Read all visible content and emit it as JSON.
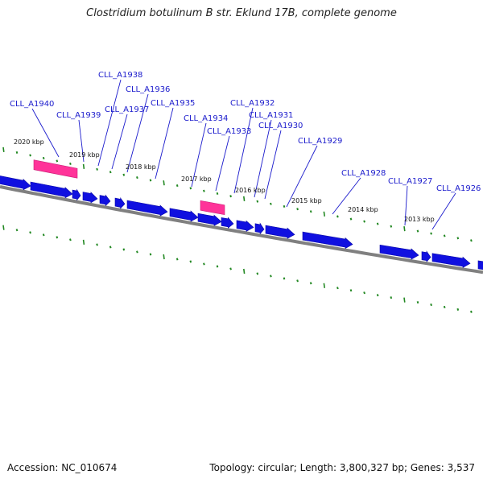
{
  "title": "Clostridium botulinum B str. Eklund 17B, complete genome",
  "footer": {
    "accession": "Accession: NC_010674",
    "summary": "Topology: circular; Length: 3,800,327 bp; Genes: 3,537"
  },
  "colors": {
    "gene": "#1010e0",
    "rna": "#ff3399",
    "backbone": "#808080",
    "ticks": "#228822",
    "label": "#1a1acc"
  },
  "kbp_labels": [
    "2020 kbp",
    "2019 kbp",
    "2018 kbp",
    "2017 kbp",
    "2016 kbp",
    "2015 kbp",
    "2014 kbp",
    "2013 kbp"
  ],
  "gene_labels": [
    "CLL_A1940",
    "CLL_A1939",
    "CLL_A1938",
    "CLL_A1937",
    "CLL_A1936",
    "CLL_A1935",
    "CLL_A1934",
    "CLL_A1933",
    "CLL_A1932",
    "CLL_A1931",
    "CLL_A1930",
    "CLL_A1929",
    "CLL_A1928",
    "CLL_A1927",
    "CLL_A1926"
  ]
}
